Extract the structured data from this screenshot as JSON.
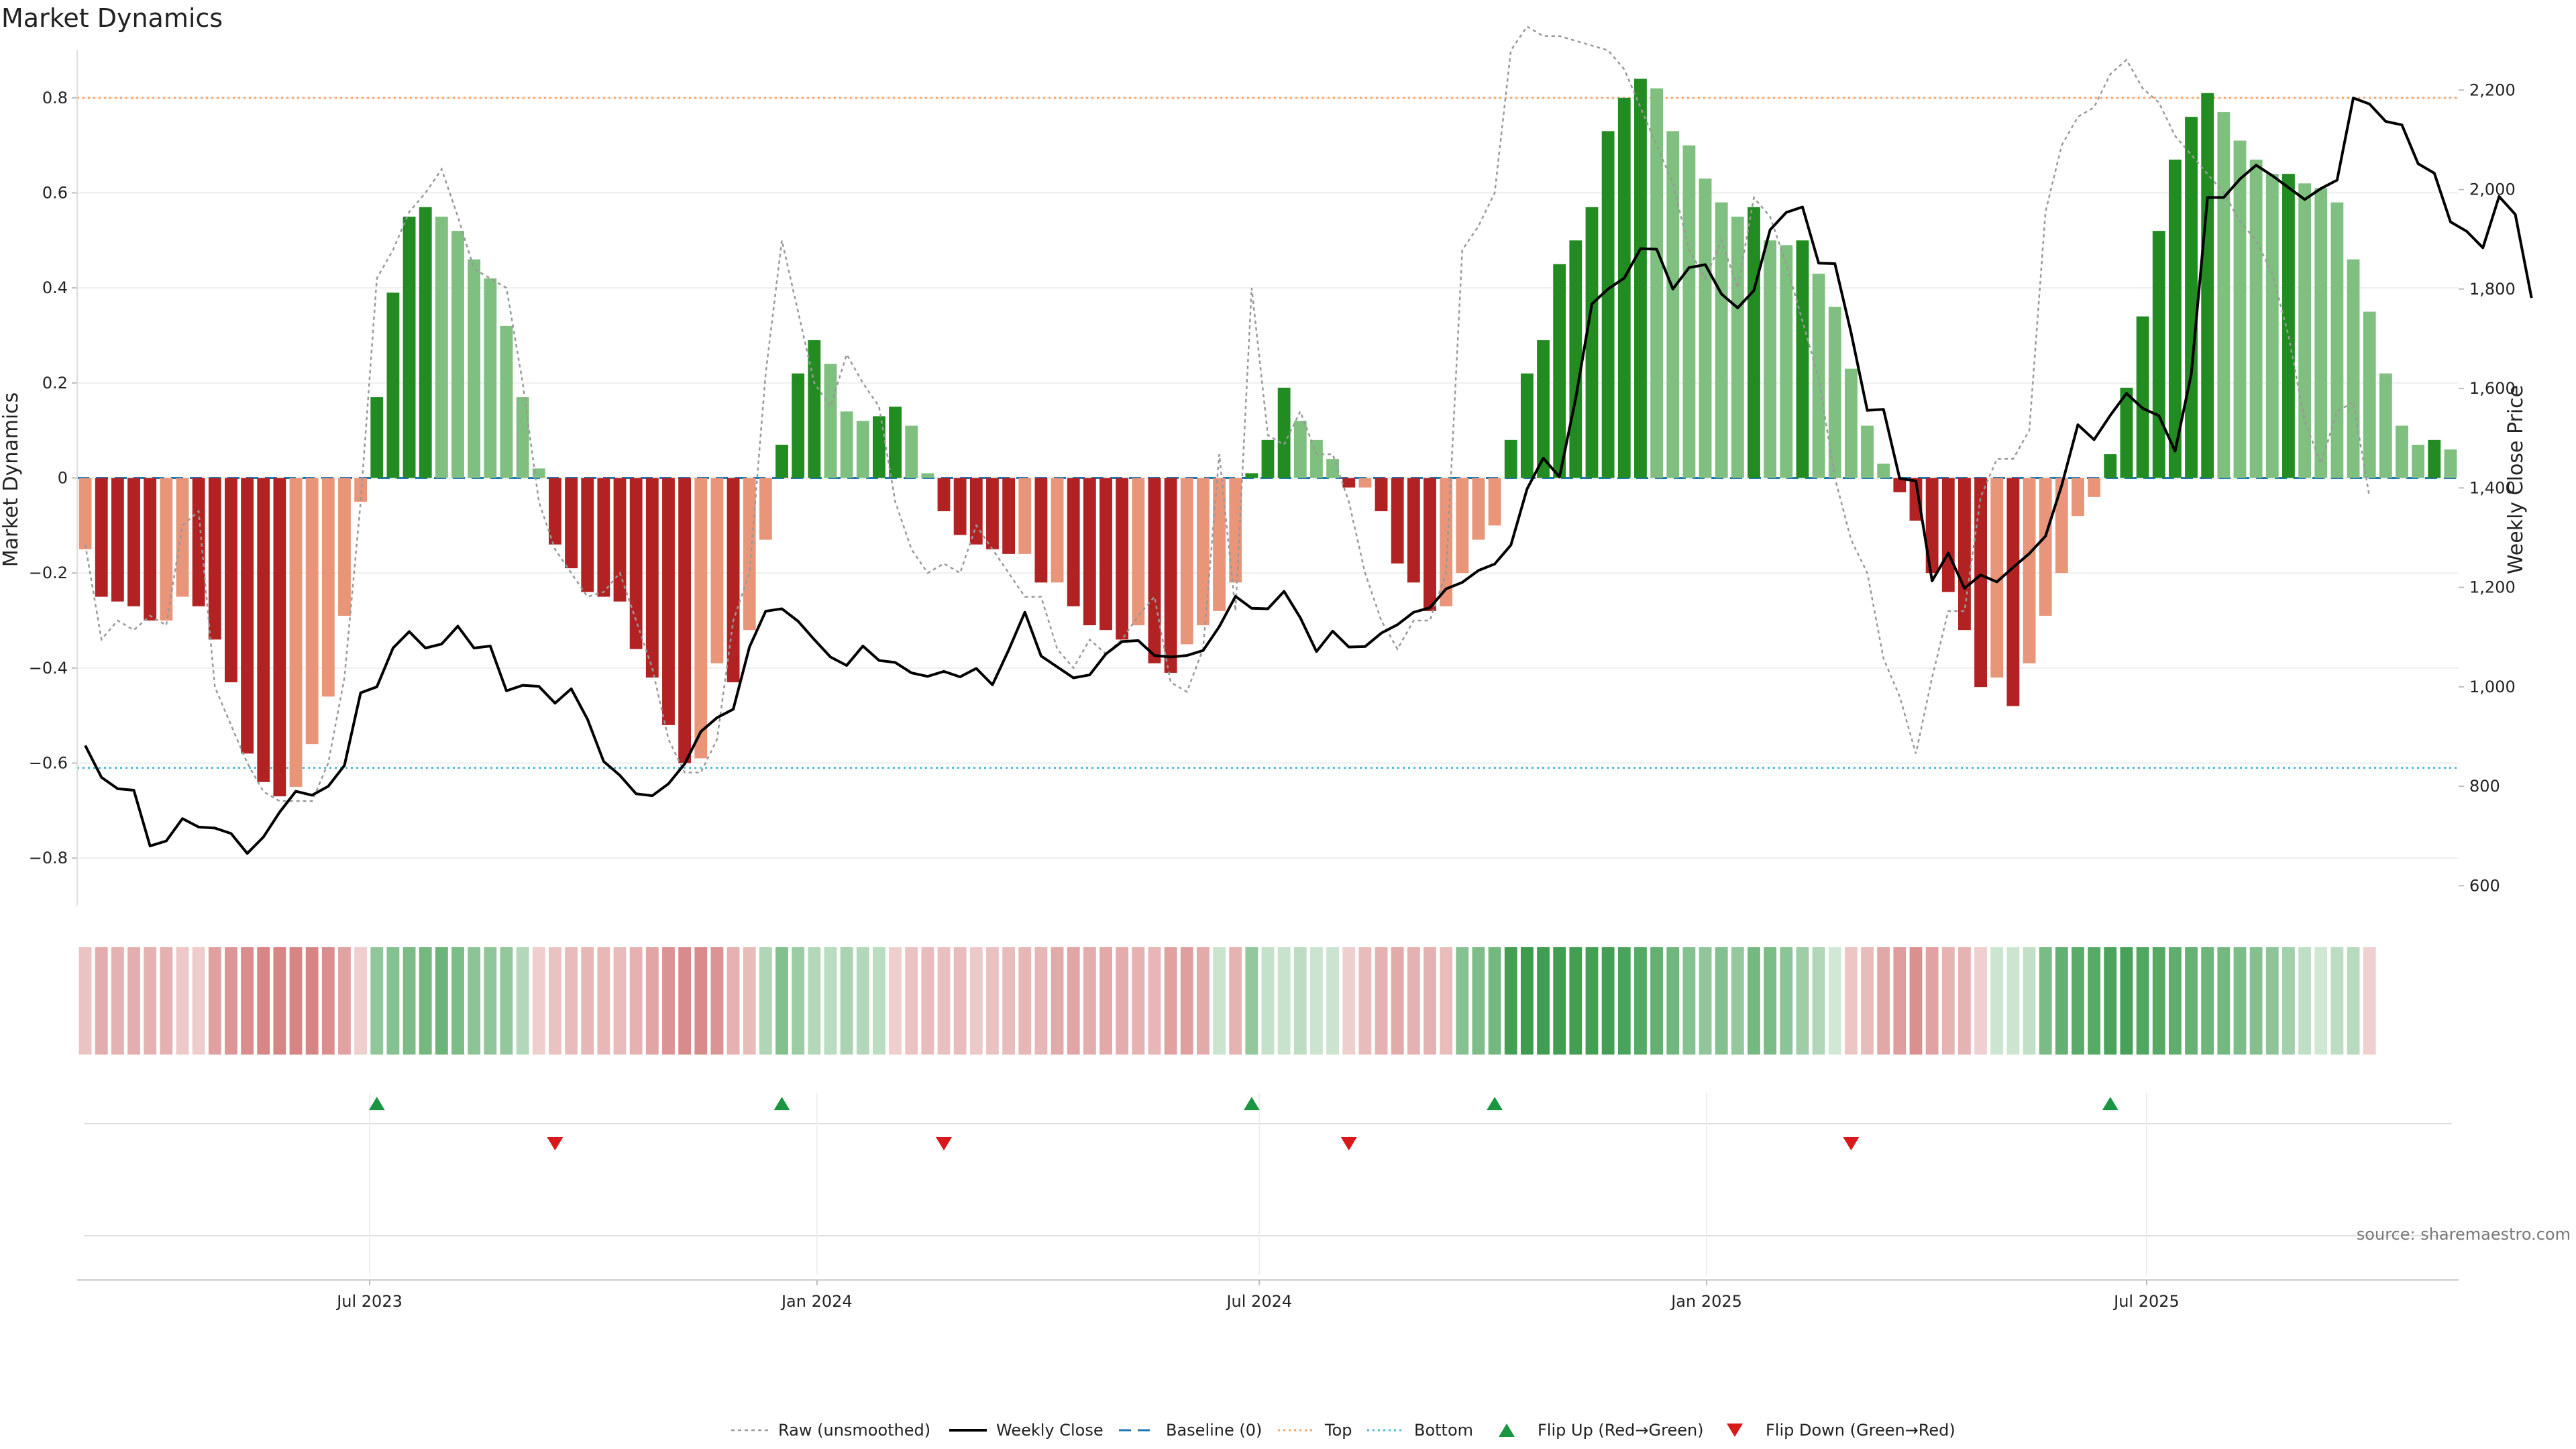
{
  "chart_data": {
    "type": "bar",
    "title": "Market Dynamics",
    "ylabel": "Market Dynamics",
    "y2label": "Weekly Close Price",
    "source": "source: sharemaestro.com",
    "ylim": [
      -0.9,
      0.9
    ],
    "y2lim": [
      560,
      2280
    ],
    "y_ticks": [
      -0.8,
      -0.6,
      -0.4,
      -0.2,
      0,
      0.2,
      0.4,
      0.6,
      0.8
    ],
    "y_tick_labels": [
      "−0.8",
      "−0.6",
      "−0.4",
      "−0.2",
      "0",
      "0.2",
      "0.4",
      "0.6",
      "0.8"
    ],
    "y2_ticks": [
      600,
      800,
      1000,
      1200,
      1400,
      1600,
      1800,
      2000,
      2200
    ],
    "y2_tick_labels": [
      "600",
      "800",
      "1,000",
      "1,200",
      "1,400",
      "1,600",
      "1,800",
      "2,000",
      "2,200"
    ],
    "x_start": "2023-03-06",
    "x_end": "2025-11-03",
    "x_ticks": [
      {
        "date": "2023-07-01",
        "label": "Jul 2023"
      },
      {
        "date": "2024-01-01",
        "label": "Jan 2024"
      },
      {
        "date": "2024-07-01",
        "label": "Jul 2024"
      },
      {
        "date": "2025-01-01",
        "label": "Jan 2025"
      },
      {
        "date": "2025-07-01",
        "label": "Jul 2025"
      }
    ],
    "top_threshold": 0.8,
    "bottom_threshold": -0.61,
    "baseline": 0,
    "smoothed": [
      -0.15,
      -0.25,
      -0.26,
      -0.27,
      -0.3,
      -0.3,
      -0.25,
      -0.27,
      -0.34,
      -0.43,
      -0.58,
      -0.64,
      -0.67,
      -0.65,
      -0.56,
      -0.46,
      -0.29,
      -0.05,
      0.17,
      0.39,
      0.55,
      0.57,
      0.55,
      0.52,
      0.46,
      0.42,
      0.32,
      0.17,
      0.02,
      -0.14,
      -0.19,
      -0.24,
      -0.25,
      -0.26,
      -0.36,
      -0.42,
      -0.52,
      -0.6,
      -0.59,
      -0.39,
      -0.43,
      -0.32,
      -0.13,
      0.07,
      0.22,
      0.29,
      0.24,
      0.14,
      0.12,
      0.13,
      0.15,
      0.11,
      0.01,
      -0.07,
      -0.12,
      -0.14,
      -0.15,
      -0.16,
      -0.16,
      -0.22,
      -0.22,
      -0.27,
      -0.31,
      -0.32,
      -0.34,
      -0.31,
      -0.39,
      -0.41,
      -0.35,
      -0.31,
      -0.28,
      -0.22,
      0.01,
      0.08,
      0.19,
      0.12,
      0.08,
      0.04,
      -0.02,
      -0.02,
      -0.07,
      -0.18,
      -0.22,
      -0.28,
      -0.27,
      -0.2,
      -0.13,
      -0.1,
      0.08,
      0.22,
      0.29,
      0.45,
      0.5,
      0.57,
      0.73,
      0.8,
      0.84,
      0.82,
      0.73,
      0.7,
      0.63,
      0.58,
      0.55,
      0.57,
      0.5,
      0.49,
      0.5,
      0.43,
      0.36,
      0.23,
      0.11,
      0.03,
      -0.03,
      -0.09,
      -0.2,
      -0.24,
      -0.32,
      -0.44,
      -0.42,
      -0.48,
      -0.39,
      -0.29,
      -0.2,
      -0.08,
      -0.04,
      0.05,
      0.19,
      0.34,
      0.52,
      0.67,
      0.76,
      0.81,
      0.77,
      0.71,
      0.67,
      0.64,
      0.64,
      0.62,
      0.61,
      0.58,
      0.46,
      0.35,
      0.22,
      0.11,
      0.07,
      0.08,
      0.06
    ],
    "raw": [
      -0.14,
      -0.34,
      -0.3,
      -0.32,
      -0.29,
      -0.31,
      -0.1,
      -0.07,
      -0.44,
      -0.52,
      -0.6,
      -0.66,
      -0.68,
      -0.68,
      -0.68,
      -0.6,
      -0.42,
      -0.05,
      0.42,
      0.48,
      0.56,
      0.6,
      0.65,
      0.55,
      0.44,
      0.42,
      0.4,
      0.2,
      -0.05,
      -0.15,
      -0.2,
      -0.25,
      -0.24,
      -0.2,
      -0.3,
      -0.4,
      -0.55,
      -0.62,
      -0.62,
      -0.55,
      -0.3,
      -0.2,
      0.22,
      0.5,
      0.35,
      0.2,
      0.15,
      0.26,
      0.2,
      0.15,
      -0.05,
      -0.15,
      -0.2,
      -0.18,
      -0.2,
      -0.1,
      -0.15,
      -0.2,
      -0.25,
      -0.25,
      -0.36,
      -0.4,
      -0.34,
      -0.37,
      -0.34,
      -0.29,
      -0.25,
      -0.43,
      -0.45,
      -0.36,
      0.05,
      -0.28,
      0.4,
      0.09,
      0.07,
      0.14,
      0.05,
      0.05,
      -0.05,
      -0.2,
      -0.3,
      -0.36,
      -0.3,
      -0.3,
      -0.2,
      0.48,
      0.53,
      0.6,
      0.9,
      0.95,
      0.93,
      0.93,
      0.92,
      0.91,
      0.9,
      0.86,
      0.78,
      0.7,
      0.62,
      0.48,
      0.42,
      0.5,
      0.4,
      0.59,
      0.55,
      0.45,
      0.33,
      0.21,
      0.0,
      -0.13,
      -0.2,
      -0.38,
      -0.46,
      -0.58,
      -0.42,
      -0.28,
      -0.28,
      -0.04,
      0.04,
      0.04,
      0.1,
      0.56,
      0.7,
      0.76,
      0.78,
      0.85,
      0.88,
      0.82,
      0.79,
      0.72,
      0.68,
      0.64,
      0.6,
      0.54,
      0.5,
      0.43,
      0.3,
      0.12,
      0.03,
      0.14,
      0.16,
      -0.04
    ],
    "close": [
      882,
      818,
      795,
      792,
      680,
      690,
      735,
      718,
      716,
      705,
      665,
      698,
      748,
      790,
      782,
      800,
      842,
      988,
      1000,
      1078,
      1111,
      1078,
      1086,
      1122,
      1078,
      1082,
      992,
      1003,
      1001,
      967,
      996,
      935,
      850,
      822,
      785,
      781,
      805,
      845,
      910,
      938,
      955,
      1080,
      1152,
      1157,
      1132,
      1095,
      1060,
      1043,
      1082,
      1053,
      1049,
      1028,
      1021,
      1031,
      1020,
      1037,
      1004,
      1074,
      1150,
      1062,
      1040,
      1018,
      1024,
      1066,
      1091,
      1093,
      1063,
      1060,
      1063,
      1073,
      1121,
      1182,
      1158,
      1157,
      1192,
      1139,
      1071,
      1112,
      1080,
      1081,
      1108,
      1125,
      1150,
      1159,
      1197,
      1210,
      1234,
      1247,
      1285,
      1398,
      1460,
      1422,
      1580,
      1770,
      1800,
      1822,
      1881,
      1880,
      1800,
      1843,
      1849,
      1790,
      1762,
      1797,
      1919,
      1954,
      1965,
      1852,
      1851,
      1712,
      1556,
      1558,
      1419,
      1414,
      1213,
      1269,
      1198,
      1225,
      1211,
      1240,
      1268,
      1303,
      1405,
      1527,
      1497,
      1546,
      1590,
      1560,
      1545,
      1474,
      1629,
      1984,
      1984,
      2021,
      2049,
      2028,
      2004,
      1980,
      2002,
      2019,
      2184,
      2172,
      2137,
      2130,
      2052,
      2033,
      1935,
      1916,
      1883,
      1986,
      1950,
      1782
    ],
    "heat_strip": [
      -0.14,
      -0.34,
      -0.3,
      -0.32,
      -0.29,
      -0.31,
      -0.1,
      -0.07,
      -0.44,
      -0.52,
      -0.6,
      -0.66,
      -0.68,
      -0.68,
      -0.68,
      -0.6,
      -0.42,
      -0.05,
      0.42,
      0.48,
      0.56,
      0.6,
      0.65,
      0.55,
      0.44,
      0.42,
      0.4,
      0.2,
      -0.05,
      -0.15,
      -0.2,
      -0.25,
      -0.24,
      -0.2,
      -0.3,
      -0.4,
      -0.55,
      -0.62,
      -0.62,
      -0.55,
      -0.3,
      -0.2,
      0.22,
      0.5,
      0.35,
      0.2,
      0.15,
      0.26,
      0.2,
      0.15,
      -0.05,
      -0.15,
      -0.2,
      -0.18,
      -0.2,
      -0.1,
      -0.15,
      -0.2,
      -0.25,
      -0.25,
      -0.36,
      -0.4,
      -0.34,
      -0.37,
      -0.34,
      -0.29,
      -0.25,
      -0.43,
      -0.45,
      -0.36,
      0.05,
      -0.28,
      0.4,
      0.09,
      0.07,
      0.14,
      0.05,
      0.05,
      -0.05,
      -0.2,
      -0.3,
      -0.36,
      -0.3,
      -0.3,
      -0.2,
      0.48,
      0.53,
      0.6,
      0.9,
      0.95,
      0.93,
      0.93,
      0.92,
      0.91,
      0.9,
      0.86,
      0.78,
      0.7,
      0.62,
      0.48,
      0.42,
      0.5,
      0.4,
      0.59,
      0.55,
      0.45,
      0.33,
      0.21,
      0.0,
      -0.13,
      -0.2,
      -0.38,
      -0.46,
      -0.58,
      -0.42,
      -0.28,
      -0.28,
      -0.04,
      0.04,
      0.04,
      0.1,
      0.56,
      0.7,
      0.76,
      0.78,
      0.85,
      0.88,
      0.82,
      0.79,
      0.72,
      0.68,
      0.64,
      0.6,
      0.54,
      0.5,
      0.43,
      0.3,
      0.12,
      0.03,
      0.14,
      0.16,
      -0.04
    ],
    "flip_up_weeks": [
      18,
      43,
      72,
      87,
      125
    ],
    "flip_down_weeks": [
      29,
      53,
      78,
      109
    ],
    "colors": {
      "strong_green": "#228b22",
      "light_green": "#7fbf7f",
      "strong_red": "#b22222",
      "light_red": "#e8957a",
      "close_line": "#000000",
      "raw_line": "#999999",
      "baseline": "#1f77b4",
      "top": "#f4a460",
      "bottom": "#4fb8d8",
      "flip_up": "#1a9641",
      "flip_down": "#d7191c"
    },
    "legend": [
      {
        "label": "Raw (unsmoothed)",
        "icon": "dotted-gray-line"
      },
      {
        "label": "Weekly Close",
        "icon": "solid-black-line"
      },
      {
        "label": "Baseline (0)",
        "icon": "dashed-blue-line"
      },
      {
        "label": "Top",
        "icon": "dotted-orange-line"
      },
      {
        "label": "Bottom",
        "icon": "dotted-cyan-line"
      },
      {
        "label": "Flip Up (Red→Green)",
        "icon": "green-triangle-up"
      },
      {
        "label": "Flip Down (Green→Red)",
        "icon": "red-triangle-down"
      }
    ],
    "legend_placement": "bottom-center",
    "grid": true
  }
}
